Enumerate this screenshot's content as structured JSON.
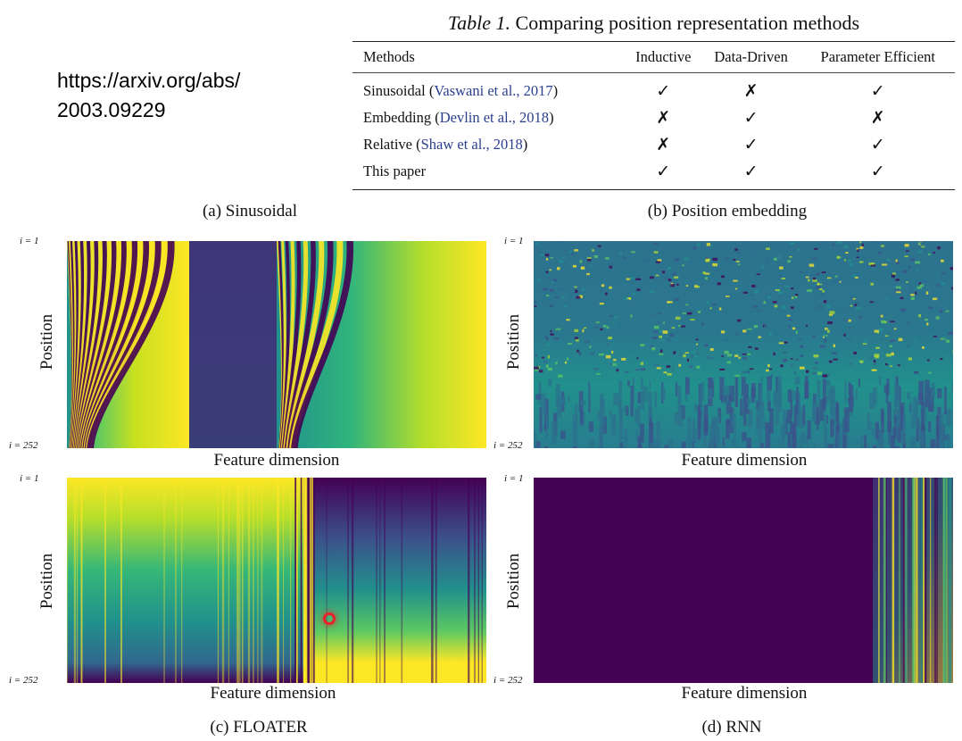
{
  "url_text": "https://arxiv.org/abs/\n2003.09229",
  "table": {
    "caption_prefix": "Table 1.",
    "caption_rest": "Comparing position representation methods",
    "columns": [
      "Methods",
      "Inductive",
      "Data-Driven",
      "Parameter Efficient"
    ],
    "rows": [
      {
        "method": "Sinusoidal",
        "cite": "Vaswani et al., 2017",
        "values": [
          "✓",
          "✗",
          "✓"
        ]
      },
      {
        "method": "Embedding",
        "cite": "Devlin et al., 2018",
        "values": [
          "✗",
          "✓",
          "✗"
        ]
      },
      {
        "method": "Relative",
        "cite": "Shaw et al., 2018",
        "values": [
          "✗",
          "✓",
          "✓"
        ]
      },
      {
        "method": "This paper",
        "cite": "",
        "values": [
          "✓",
          "✓",
          "✓"
        ]
      }
    ]
  },
  "panels": {
    "a": {
      "caption": "(a) Sinusoidal"
    },
    "b": {
      "caption": "(b) Position embedding"
    },
    "c": {
      "caption": "(c) FLOATER"
    },
    "d": {
      "caption": "(d) RNN"
    }
  },
  "axis": {
    "ylabel": "Position",
    "xlabel": "Feature dimension",
    "tick_top": "i = 1",
    "tick_bottom": "i = 252"
  },
  "colors": {
    "viridis_dark": "#440154",
    "viridis_blue": "#3b528b",
    "viridis_teal": "#21918c",
    "viridis_green": "#5ec962",
    "viridis_yellow": "#fde725",
    "cursor_marker": "#e8222a"
  }
}
